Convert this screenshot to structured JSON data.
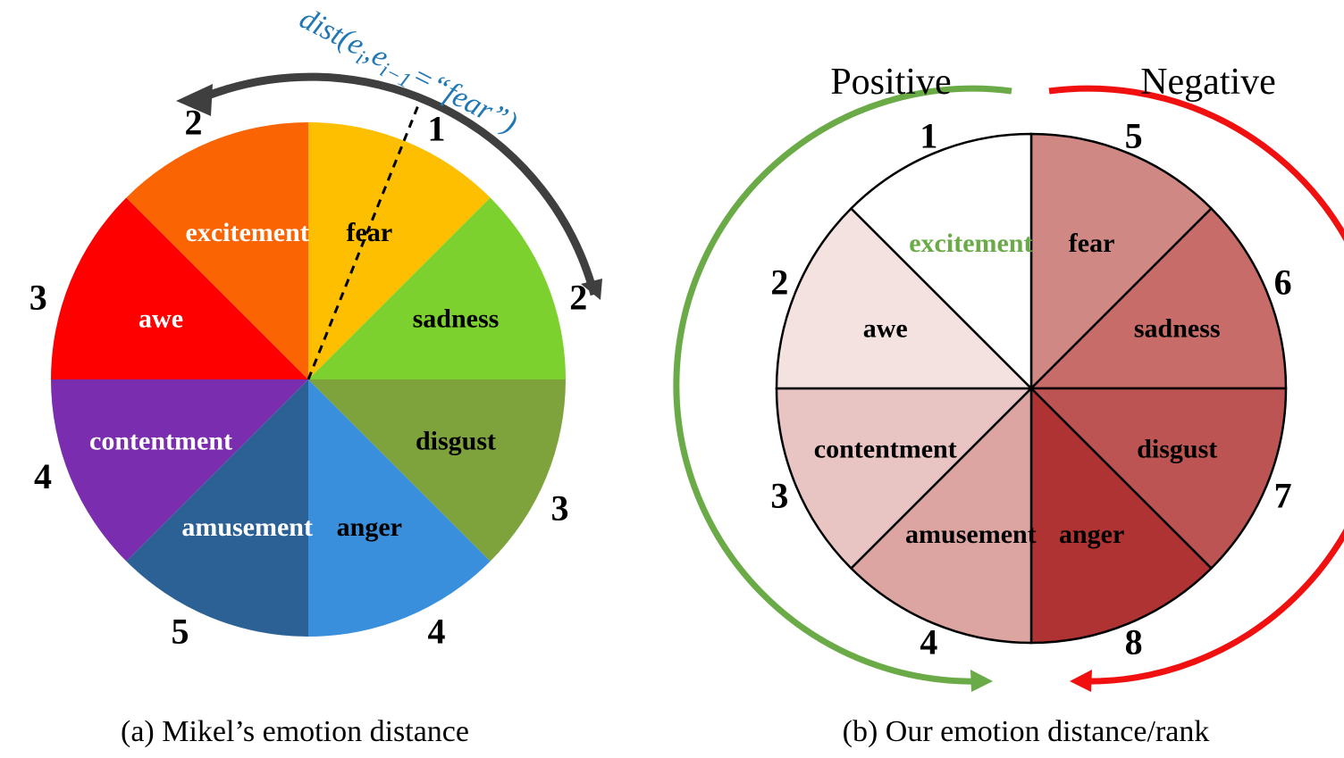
{
  "panel_a": {
    "caption": "(a) Mikel’s emotion distance",
    "formula": "dist(e",
    "formula_sub_i": "i",
    "formula_mid": ",e",
    "formula_sub_i1": "i−1",
    "formula_end": "=“fear”)",
    "wedges": [
      {
        "label": "fear",
        "color": "#FDBF00",
        "text_color": "#000000"
      },
      {
        "label": "sadness",
        "color": "#7CD12E",
        "text_color": "#000000"
      },
      {
        "label": "disgust",
        "color": "#7FA33C",
        "text_color": "#000000"
      },
      {
        "label": "anger",
        "color": "#3A8FDC",
        "text_color": "#000000"
      },
      {
        "label": "amusement",
        "color": "#2C6196",
        "text_color": "#FFFFFF"
      },
      {
        "label": "contentment",
        "color": "#7A2DAE",
        "text_color": "#FFFFFF"
      },
      {
        "label": "awe",
        "color": "#FE0000",
        "text_color": "#FFFFFF"
      },
      {
        "label": "excitement",
        "color": "#FA6402",
        "text_color": "#FFFFFF"
      }
    ],
    "numbers": [
      "1",
      "2",
      "3",
      "4",
      "5",
      "4",
      "3",
      "2"
    ],
    "arrow_color": "#3F3F3F"
  },
  "panel_b": {
    "caption": "(b) Our emotion distance/rank",
    "positive_label": "Positive",
    "negative_label": "Negative",
    "positive_color": "#6AAB47",
    "negative_color": "#F01010",
    "wedges": [
      {
        "label": "fear",
        "color": "#D08884",
        "text_color": "#000000"
      },
      {
        "label": "sadness",
        "color": "#C76C68",
        "text_color": "#000000"
      },
      {
        "label": "disgust",
        "color": "#BB5452",
        "text_color": "#000000"
      },
      {
        "label": "anger",
        "color": "#AF3333",
        "text_color": "#000000"
      },
      {
        "label": "amusement",
        "color": "#DDA5A1",
        "text_color": "#000000"
      },
      {
        "label": "contentment",
        "color": "#E8C4C2",
        "text_color": "#000000"
      },
      {
        "label": "awe",
        "color": "#F4E2E1",
        "text_color": "#000000"
      },
      {
        "label": "excitement",
        "color": "#FFFFFF",
        "text_color": "#6AAB47"
      }
    ],
    "numbers": [
      "5",
      "6",
      "7",
      "8",
      "4",
      "3",
      "2",
      "1"
    ]
  }
}
